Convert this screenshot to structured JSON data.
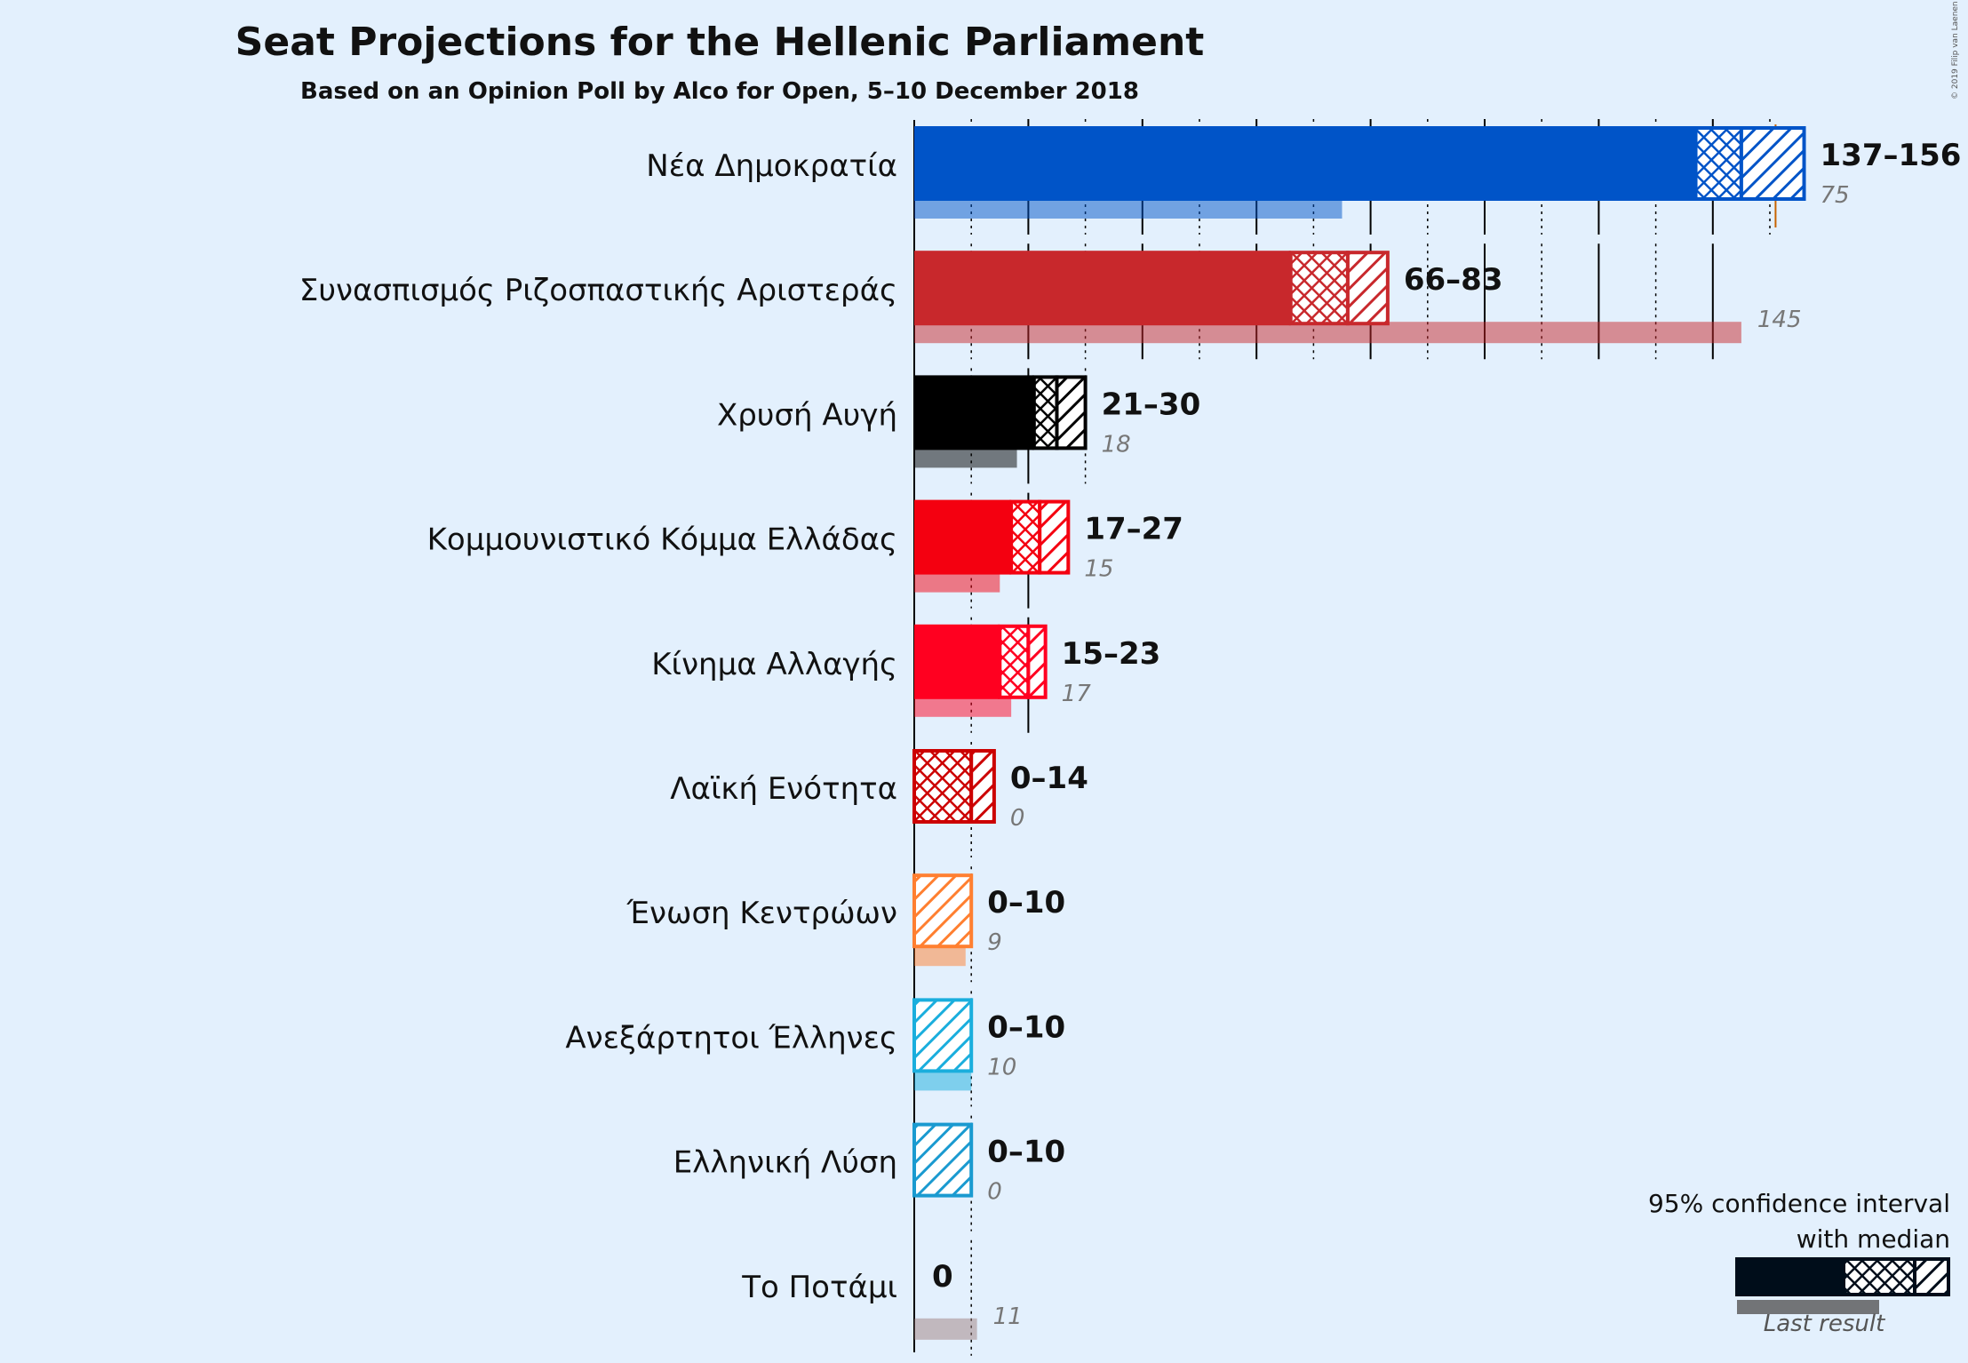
{
  "title": "Seat Projections for the Hellenic Parliament",
  "subtitle": "Based on an Opinion Poll by Alco for Open, 5–10 December 2018",
  "copyright": "© 2019 Filip van Laenen",
  "legend": {
    "line1": "95% confidence interval",
    "line2": "with median",
    "last_result": "Last result"
  },
  "chart_data": {
    "type": "bar",
    "orientation": "horizontal",
    "title": "Seat Projections for the Hellenic Parliament",
    "subtitle": "Based on an Opinion Poll by Alco for Open, 5–10 December 2018",
    "xlim": [
      0,
      156
    ],
    "majority_line": 151,
    "grid": "on",
    "legend_position": "bottom-right",
    "series": [
      {
        "party": "Νέα Δημοκρατία",
        "low": 137,
        "median": 145,
        "high": 156,
        "label": "137–156",
        "last": 75,
        "last_label": "75",
        "color": "#0054c8"
      },
      {
        "party": "Συνασπισμός Ριζοσπαστικής Αριστεράς",
        "low": 66,
        "median": 76,
        "high": 83,
        "label": "66–83",
        "last": 145,
        "last_label": "145",
        "color": "#c8282c"
      },
      {
        "party": "Χρυσή Αυγή",
        "low": 21,
        "median": 25,
        "high": 30,
        "label": "21–30",
        "last": 18,
        "last_label": "18",
        "color": "#000000"
      },
      {
        "party": "Κομμουνιστικό Κόμμα Ελλάδας",
        "low": 17,
        "median": 22,
        "high": 27,
        "label": "17–27",
        "last": 15,
        "last_label": "15",
        "color": "#f40010"
      },
      {
        "party": "Κίνημα Αλλαγής",
        "low": 15,
        "median": 20,
        "high": 23,
        "label": "15–23",
        "last": 17,
        "last_label": "17",
        "color": "#ff0020"
      },
      {
        "party": "Λαϊκή Ενότητα",
        "low": 0,
        "median": 10,
        "high": 14,
        "label": "0–14",
        "last": 0,
        "last_label": "0",
        "color": "#cc0000"
      },
      {
        "party": "Ένωση Κεντρώων",
        "low": 0,
        "median": 0,
        "high": 10,
        "label": "0–10",
        "last": 9,
        "last_label": "9",
        "color": "#ff7f30"
      },
      {
        "party": "Ανεξάρτητοι Έλληνες",
        "low": 0,
        "median": 0,
        "high": 10,
        "label": "0–10",
        "last": 10,
        "last_label": "10",
        "color": "#1aaedd"
      },
      {
        "party": "Ελληνική Λύση",
        "low": 0,
        "median": 0,
        "high": 10,
        "label": "0–10",
        "last": 0,
        "last_label": "0",
        "color": "#1a9ad0"
      },
      {
        "party": "Το Ποτάμι",
        "low": 0,
        "median": 0,
        "high": 0,
        "label": "0",
        "last": 11,
        "last_label": "11",
        "color": "#a08080"
      }
    ]
  }
}
